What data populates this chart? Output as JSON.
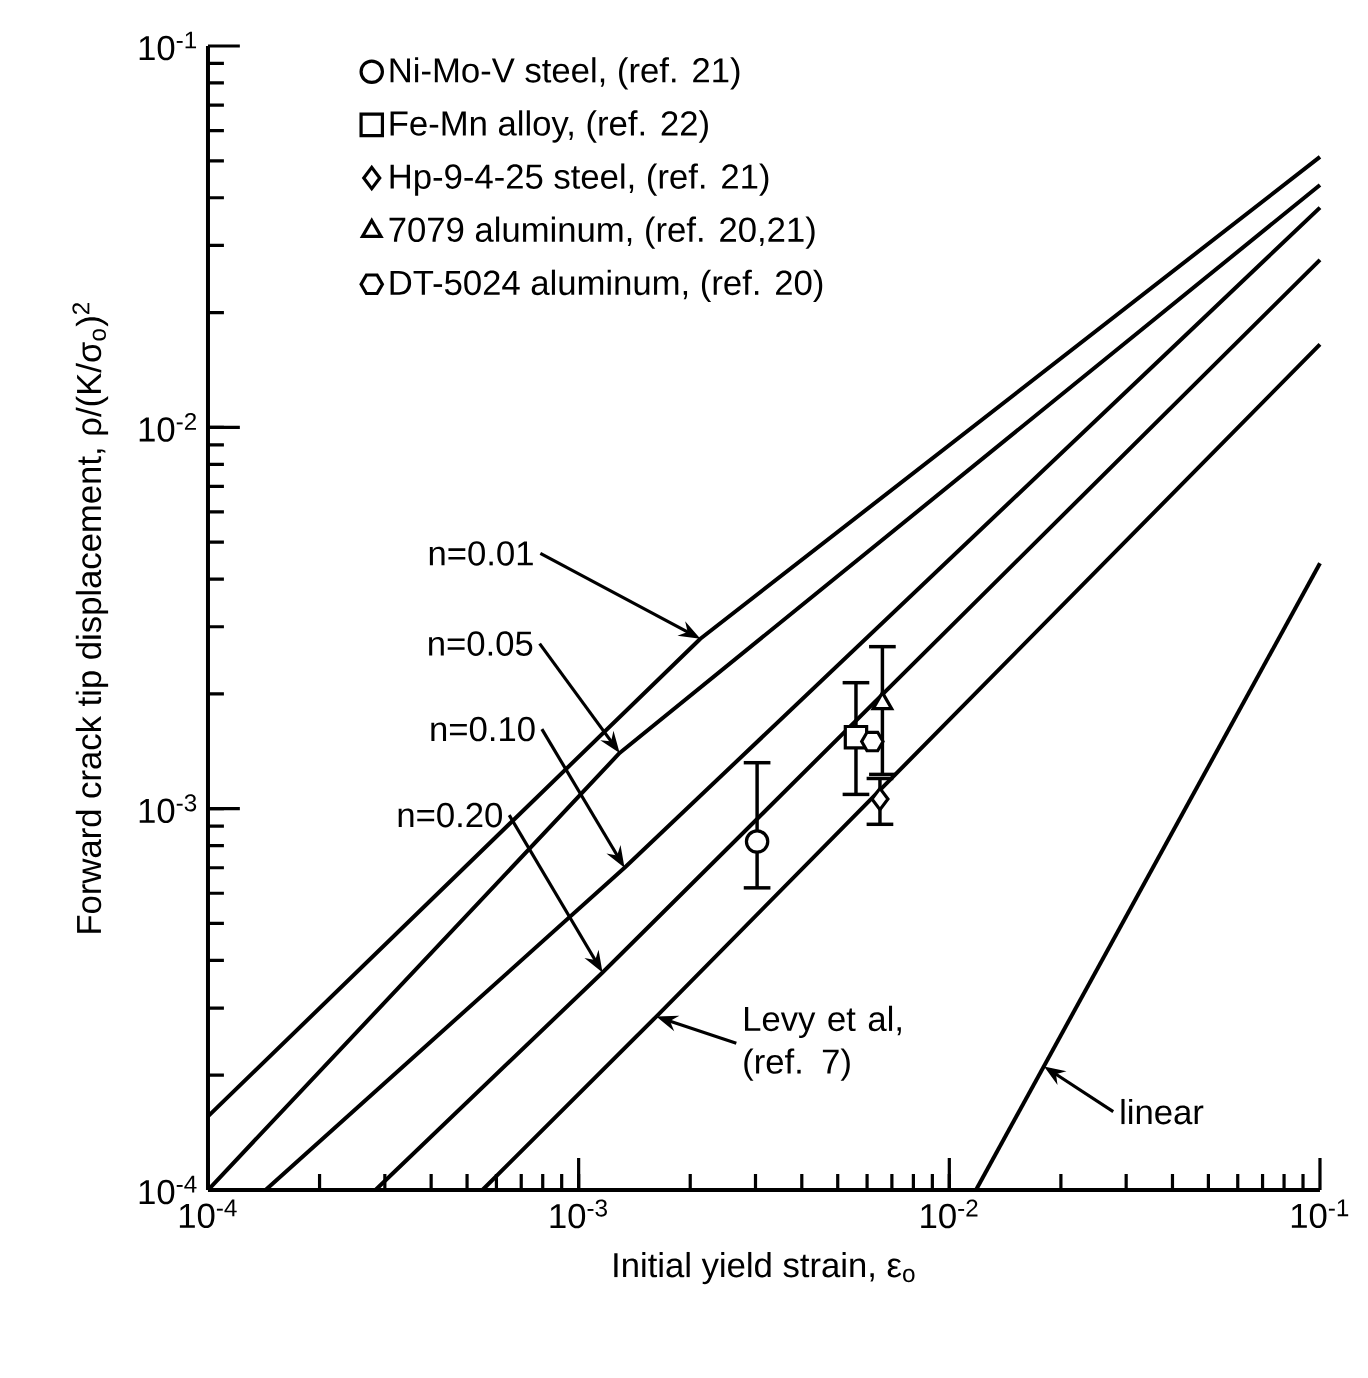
{
  "chart_data": {
    "type": "line",
    "xlabel": "Initial yield strain, ε$_{o}$",
    "ylabel": "Forward crack tip displacement,  ρ/(K/σ$_{o}$)$^{2}$",
    "log": "xy",
    "xlim": [
      0.0001,
      0.1
    ],
    "ylim": [
      0.0001,
      0.1
    ],
    "xticks": [
      {
        "value": 0.0001,
        "label": "10$^{-4}$"
      },
      {
        "value": 0.001,
        "label": "10$^{-3}$"
      },
      {
        "value": 0.01,
        "label": "10$^{-2}$"
      },
      {
        "value": 0.1,
        "label": "10$^{-1}$"
      }
    ],
    "yticks": [
      {
        "value": 0.0001,
        "label": "10$^{-4}$"
      },
      {
        "value": 0.001,
        "label": "10$^{-3}$"
      },
      {
        "value": 0.01,
        "label": "10$^{-2}$"
      },
      {
        "value": 0.1,
        "label": "10$^{-1}$"
      }
    ],
    "legend": "top left",
    "series": [
      {
        "color": "#000000",
        "x": [
          0.0001,
          0.00213,
          0.1
        ],
        "values": [
          0.000156,
          0.00279,
          0.0512
        ]
      },
      {
        "color": "#000000",
        "x": [
          0.0001,
          0.00129,
          0.1
        ],
        "values": [
          0.0001,
          0.0014,
          0.0432
        ]
      },
      {
        "color": "#000000",
        "x": [
          0.000143,
          0.00133,
          0.1
        ],
        "values": [
          0.0001,
          0.0007,
          0.0377
        ]
      },
      {
        "color": "#000000",
        "x": [
          0.000283,
          0.00116,
          0.1
        ],
        "values": [
          0.0001,
          0.000372,
          0.0275
        ]
      },
      {
        "color": "#000000",
        "x": [
          0.00055,
          0.00162,
          0.1
        ],
        "values": [
          0.0001,
          0.000285,
          0.0165
        ]
      },
      {
        "color": "#000000",
        "x": [
          0.0118,
          0.1
        ],
        "values": [
          0.0001,
          0.0044
        ]
      },
      {
        "type": "scatter",
        "name": "Ni-Mo-V steel, (ref. 21)",
        "marker": "circle",
        "color": "#000000",
        "x": [
          0.00303
        ],
        "values": [
          0.00082
        ],
        "errors": [
          [
            0.00062,
            0.00132
          ]
        ]
      },
      {
        "type": "scatter",
        "name": "Fe-Mn alloy, (ref. 22)",
        "marker": "square",
        "color": "#000000",
        "x": [
          0.0056
        ],
        "values": [
          0.00154
        ],
        "errors": [
          [
            0.00109,
            0.00214
          ]
        ]
      },
      {
        "type": "scatter",
        "name": "Hp-9-4-25 steel, (ref. 21)",
        "marker": "diamond",
        "color": "#000000",
        "x": [
          0.0065
        ],
        "values": [
          0.00106
        ],
        "errors": [
          [
            0.00091,
            0.0012
          ]
        ]
      },
      {
        "type": "scatter",
        "name": "7079 aluminum, (ref. 20,21)",
        "marker": "triangle",
        "color": "#000000",
        "x": [
          0.0066
        ],
        "values": [
          0.00189
        ],
        "errors": [
          [
            0.00123,
            0.00266
          ]
        ]
      },
      {
        "type": "scatter",
        "name": "DT-5024 aluminum, (ref. 20)",
        "color": "#000000",
        "x": [
          0.0062
        ],
        "values": [
          0.0015
        ]
      }
    ],
    "annotations": [
      {
        "text": "n=0.01",
        "x": 0.00213,
        "y": 0.00279
      },
      {
        "text": "n=0.05",
        "x": 0.00129,
        "y": 0.0014
      },
      {
        "text": "n=0.10",
        "x": 0.00133,
        "y": 0.0007
      },
      {
        "text": "n=0.20",
        "x": 0.00116,
        "y": 0.000372
      },
      {
        "text": "Levy et al, (ref. 7)",
        "x": 0.00162,
        "y": 0.000285
      },
      {
        "text": "linear",
        "x": 0.018,
        "y": 0.000211
      }
    ]
  }
}
